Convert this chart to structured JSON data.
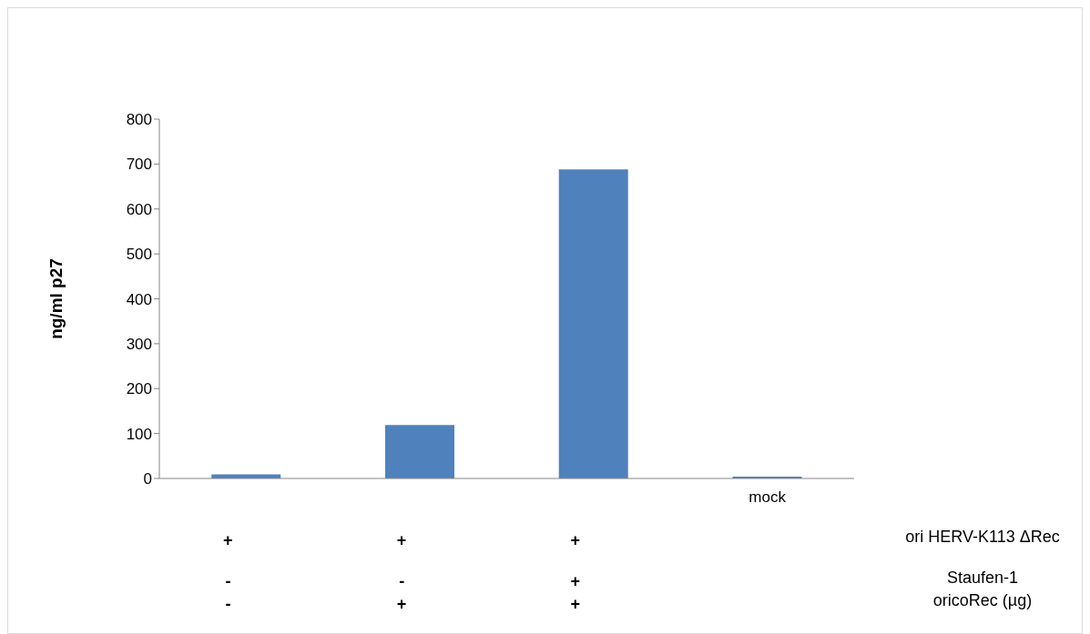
{
  "chart_data": {
    "type": "bar",
    "ylabel": "ng/ml p27",
    "categories": [
      "+\n-\n-",
      "+\n-\n+",
      "+\n+\n+",
      "mock"
    ],
    "values": [
      9,
      119,
      688,
      4
    ],
    "color": "#4f81bd",
    "ylim": [
      0,
      800
    ],
    "yticks": [
      0,
      100,
      200,
      300,
      400,
      500,
      600,
      700,
      800
    ],
    "grid": false,
    "legend": false,
    "annotations": [
      "ori HERV-K113 ΔRec",
      "Staufen-1",
      "oricoRec (µg)"
    ]
  }
}
